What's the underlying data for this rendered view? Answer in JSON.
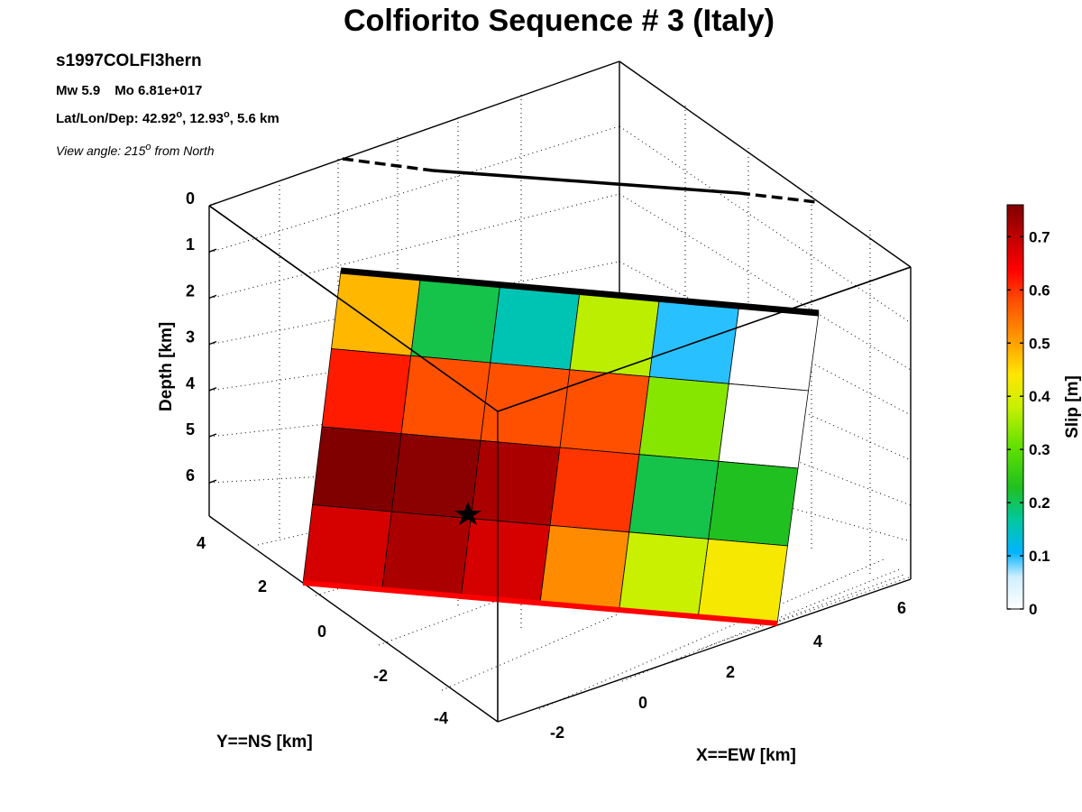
{
  "header": {
    "title": "Colfiorito Sequence # 3 (Italy)",
    "event_id": "s1997COLFI3hern",
    "mw": "Mw 5.9",
    "mo": "Mo 6.81e+017",
    "latlon_prefix": "Lat/Lon/Dep: 42.92",
    "latlon_mid": ", 12.93",
    "latlon_suffix": ", 5.6 km",
    "degree_mark": "o",
    "view_prefix": "View angle: 215",
    "view_suffix": " from North"
  },
  "chart_data": {
    "type": "heatmap",
    "xlabel": "X==EW [km]",
    "ylabel": "Y==NS [km]",
    "zlabel": "Depth [km]",
    "colorbar_label": "Slip [m]",
    "x_ticks": [
      "-2",
      "0",
      "2",
      "4",
      "6"
    ],
    "y_ticks": [
      "-4",
      "-2",
      "0",
      "2",
      "4"
    ],
    "depth_ticks": [
      "0",
      "1",
      "2",
      "3",
      "4",
      "5",
      "6"
    ],
    "colorbar_ticks": [
      "0",
      "0.1",
      "0.2",
      "0.3",
      "0.4",
      "0.5",
      "0.6",
      "0.7"
    ],
    "colorbar_range": [
      0,
      0.76
    ],
    "slip_grid_m": [
      [
        0.48,
        0.2,
        0.15,
        0.37,
        0.1,
        0.0
      ],
      [
        0.62,
        0.58,
        0.58,
        0.58,
        0.33,
        0.0
      ],
      [
        0.76,
        0.75,
        0.72,
        0.6,
        0.2,
        0.22
      ],
      [
        0.68,
        0.72,
        0.68,
        0.52,
        0.38,
        0.43
      ]
    ],
    "hypocenter": "star",
    "colors": {
      "fault_top_edge": "#000000",
      "fault_bottom_edge": "#ff0000",
      "surface_trace": "#000000"
    }
  }
}
